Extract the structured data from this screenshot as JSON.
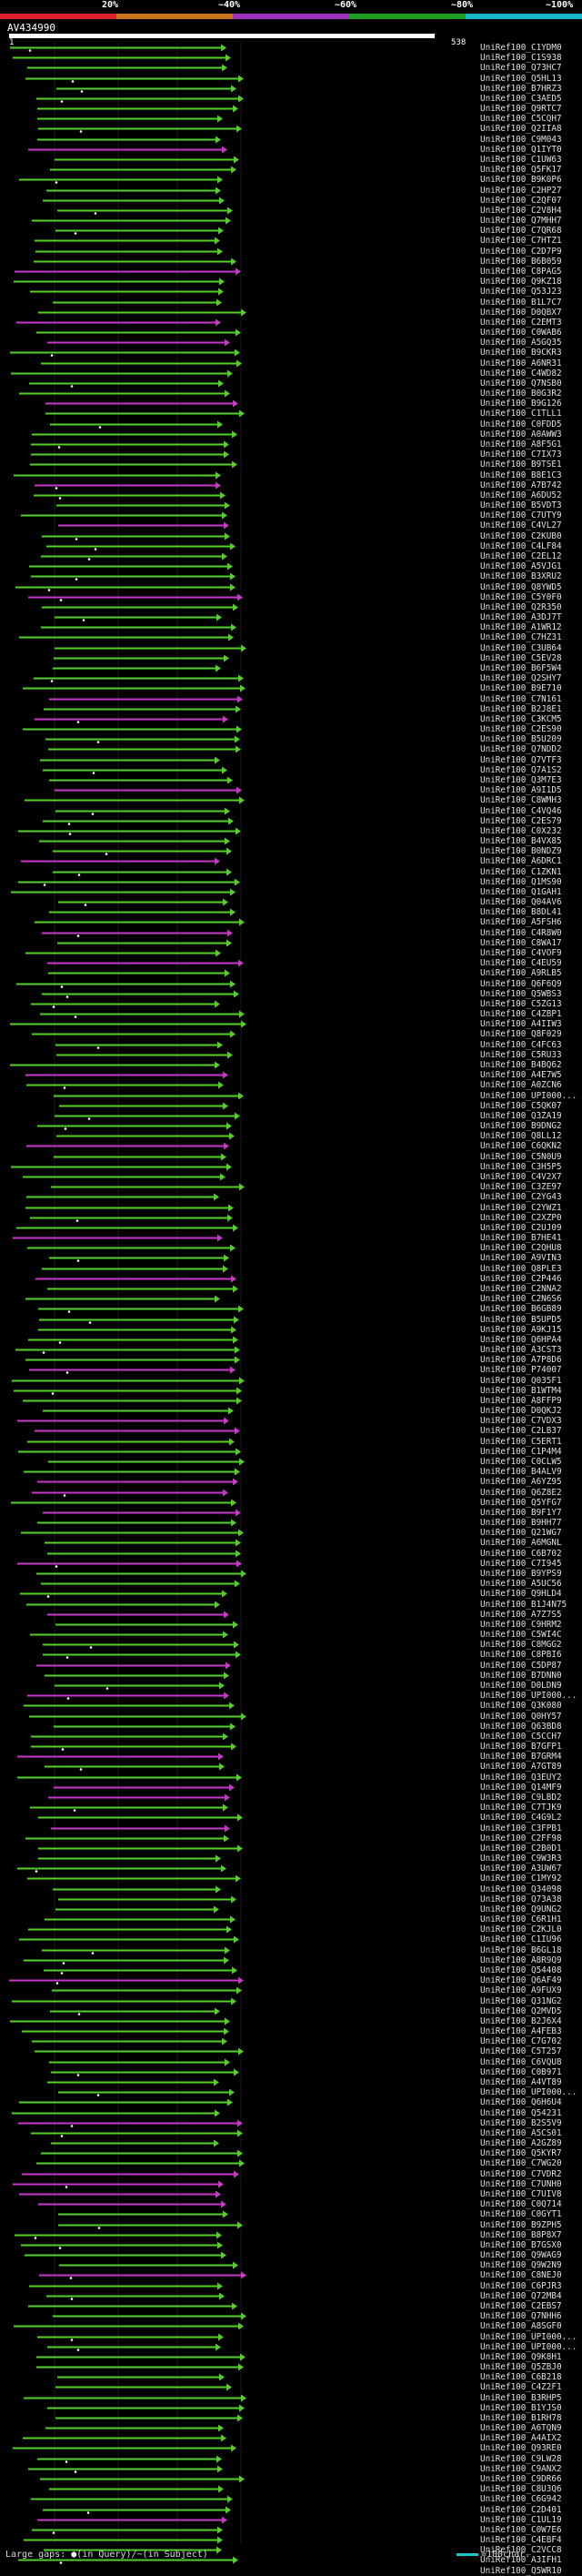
{
  "legend": {
    "labels": [
      "20%",
      "~40%",
      "~60%",
      "~80%",
      "~100%"
    ],
    "colors": [
      "#e0202a",
      "#c9741b",
      "#a030c0",
      "#1e9e1e",
      "#18b6c8"
    ]
  },
  "query": {
    "name": "AV434990",
    "start": "1",
    "end": "538"
  },
  "hits": [
    "UniRef100_C1YDM0",
    "UniRef100_C1S938",
    "UniRef100_Q73HC7",
    "UniRef100_Q5HL13",
    "UniRef100_B7HRZ3",
    "UniRef100_C3AED5",
    "UniRef100_Q9RTC7",
    "UniRef100_C5CQH7",
    "UniRef100_Q2IIA8",
    "UniRef100_C9M043",
    "UniRef100_Q1IYT0",
    "UniRef100_C1UW63",
    "UniRef100_Q5FK17",
    "UniRef100_B9K0P6",
    "UniRef100_C2HP27",
    "UniRef100_C2QF07",
    "UniRef100_C2V8H4",
    "UniRef100_Q7MHH7",
    "UniRef100_C7QR68",
    "UniRef100_C7HTZ1",
    "UniRef100_C2D7P9",
    "UniRef100_B6B059",
    "UniRef100_C8PAG5",
    "UniRef100_Q9KZ18",
    "UniRef100_Q53J23",
    "UniRef100_B1L7C7",
    "UniRef100_D0QBX7",
    "UniRef100_C2EMT3",
    "UniRef100_C0WAB6",
    "UniRef100_A5GQ35",
    "UniRef100_B9CKR3",
    "UniRef100_A6NR31",
    "UniRef100_C4WD82",
    "UniRef100_Q7NSB0",
    "UniRef100_B0G3R2",
    "UniRef100_B9G126",
    "UniRef100_C1TLL1",
    "UniRef100_C0FDD5",
    "UniRef100_A0AWW3",
    "UniRef100_A8F5G1",
    "UniRef100_C7IX73",
    "UniRef100_B9TSE1",
    "UniRef100_B8E1C3",
    "UniRef100_A7B742",
    "UniRef100_A6DU52",
    "UniRef100_B5VDT3",
    "UniRef100_C7UTY9",
    "UniRef100_C4VL27",
    "UniRef100_C2KUB0",
    "UniRef100_C4LF84",
    "UniRef100_C2EL12",
    "UniRef100_A5VJG1",
    "UniRef100_B3XRU2",
    "UniRef100_Q8YWD5",
    "UniRef100_C5Y0F0",
    "UniRef100_Q2R350",
    "UniRef100_A3DJ7T",
    "UniRef100_A1WR12",
    "UniRef100_C7HZ31",
    "UniRef100_C3UB64",
    "UniRef100_C5EV28",
    "UniRef100_B6F5W4",
    "UniRef100_Q2SHY7",
    "UniRef100_B9E710",
    "UniRef100_C7N161",
    "UniRef100_B2J8E1",
    "UniRef100_C3KCM5",
    "UniRef100_C2ES90",
    "UniRef100_B5U209",
    "UniRef100_Q7NDD2",
    "UniRef100_Q7VTF3",
    "UniRef100_Q7A1S2",
    "UniRef100_Q3M7E3",
    "UniRef100_A9I1D5",
    "UniRef100_C8WMH3",
    "UniRef100_C4VQ46",
    "UniRef100_C2ES79",
    "UniRef100_C0X232",
    "UniRef100_B4VX85",
    "UniRef100_B0NDZ9",
    "UniRef100_A6DRC1",
    "UniRef100_C1ZKN1",
    "UniRef100_Q1MS90",
    "UniRef100_Q1GAH1",
    "UniRef100_Q04AV6",
    "UniRef100_B8DL41",
    "UniRef100_A5FSH6",
    "UniRef100_C4R8W0",
    "UniRef100_C8WA17",
    "UniRef100_C4VOF9",
    "UniRef100_C4EU59",
    "UniRef100_A9RLB5",
    "UniRef100_Q6F6Q9",
    "UniRef100_Q5WBS3",
    "UniRef100_C5ZG13",
    "UniRef100_C4ZBP1",
    "UniRef100_A4IIW3",
    "UniRef100_Q8F029",
    "UniRef100_C4FC63",
    "UniRef100_C5RU33",
    "UniRef100_B4BQ62",
    "UniRef100_A4E7W5",
    "UniRef100_A0ZCN6",
    "UniRef100_UPI000...",
    "UniRef100_C5QK07",
    "UniRef100_Q3ZA19",
    "UniRef100_B9DNG2",
    "UniRef100_Q8LL12",
    "UniRef100_C6QKN2",
    "UniRef100_C5N0U9",
    "UniRef100_C3H5P5",
    "UniRef100_C4V2X7",
    "UniRef100_C3ZE97",
    "UniRef100_C2YG43",
    "UniRef100_C2YWZ1",
    "UniRef100_C2XZP0",
    "UniRef100_C2UJ09",
    "UniRef100_B7HE41",
    "UniRef100_C2QHU8",
    "UniRef100_A9VIN3",
    "UniRef100_Q8PLE3",
    "UniRef100_C2P446",
    "UniRef100_C2NNA2",
    "UniRef100_C2N6S6",
    "UniRef100_B6GB89",
    "UniRef100_B5UPD5",
    "UniRef100_A9KJ15",
    "UniRef100_Q6HPA4",
    "UniRef100_A3CST3",
    "UniRef100_A7P8D6",
    "UniRef100_P74007",
    "UniRef100_Q035F1",
    "UniRef100_B1WTM4",
    "UniRef100_A8FFP9",
    "UniRef100_D0QKJ2",
    "UniRef100_C7VDX3",
    "UniRef100_C2LB37",
    "UniRef100_C5ERT1",
    "UniRef100_C1P4M4",
    "UniRef100_C0CLW5",
    "UniRef100_B4ALV9",
    "UniRef100_A6YZ95",
    "UniRef100_Q6Z8E2",
    "UniRef100_Q5YFG7",
    "UniRef100_B9F1Y7",
    "UniRef100_B9HH77",
    "UniRef100_Q21WG7",
    "UniRef100_A6MGNL",
    "UniRef100_C6B702",
    "UniRef100_C7I945",
    "UniRef100_B9YPS9",
    "UniRef100_A5UC56",
    "UniRef100_Q9HLD4",
    "UniRef100_B1J4N75",
    "UniRef100_A7Z7S5",
    "UniRef100_C9HRM2",
    "UniRef100_C5WI4C",
    "UniRef100_C8MGG2",
    "UniRef100_C8PBI6",
    "UniRef100_C5DP87",
    "UniRef100_B7DNN0",
    "UniRef100_D0LDN9",
    "UniRef100_UPI000...",
    "UniRef100_Q3K080",
    "UniRef100_Q0HY57",
    "UniRef100_Q63BD8",
    "UniRef100_C5CCH7",
    "UniRef100_B7GFP1",
    "UniRef100_B7GRM4",
    "UniRef100_A7GT89",
    "UniRef100_Q3EUY2",
    "UniRef100_Q14MF9",
    "UniRef100_C9LBD2",
    "UniRef100_C7TJK9",
    "UniRef100_C4G9L2",
    "UniRef100_C3FPB1",
    "UniRef100_C2FF98",
    "UniRef100_C2B0D1",
    "UniRef100_C9W3R3",
    "UniRef100_A3UW67",
    "UniRef100_C1MY92",
    "UniRef100_Q34098",
    "UniRef100_Q73A38",
    "UniRef100_Q9UNG2",
    "UniRef100_C6R1H1",
    "UniRef100_C2KJL0",
    "UniRef100_C1IU96",
    "UniRef100_B6GL18",
    "UniRef100_A8R9Q9",
    "UniRef100_Q54408",
    "UniRef100_Q6AF49",
    "UniRef100_A9FUX9",
    "UniRef100_Q31NG2",
    "UniRef100_Q2MVD5",
    "UniRef100_B2J6X4",
    "UniRef100_A4FEB3",
    "UniRef100_C7G702",
    "UniRef100_C5T257",
    "UniRef100_C6VQU8",
    "UniRef100_C0B971",
    "UniRef100_A4VT89",
    "UniRef100_UPI000...",
    "UniRef100_Q6H6U4",
    "UniRef100_Q54231",
    "UniRef100_B2S5V9",
    "UniRef100_A5CS01",
    "UniRef100_A2GZ89",
    "UniRef100_Q5KYR7",
    "UniRef100_C7WG20",
    "UniRef100_C7VDR2",
    "UniRef100_C7UNH0",
    "UniRef100_C7UIV8",
    "UniRef100_C0Q714",
    "UniRef100_C0GYT1",
    "UniRef100_B9ZPH5",
    "UniRef100_B8P8X7",
    "UniRef100_B7GSX0",
    "UniRef100_Q9WAG9",
    "UniRef100_Q9W2N9",
    "UniRef100_C8NEJ0",
    "UniRef100_C6PJR3",
    "UniRef100_Q72MB4",
    "UniRef100_C2EBS7",
    "UniRef100_Q7NHH6",
    "UniRef100_A8SGF0",
    "UniRef100_UPI000...",
    "UniRef100_UPI000...",
    "UniRef100_Q9K8H1",
    "UniRef100_Q5ZBJ0",
    "UniRef100_C6B218",
    "UniRef100_C4Z2F1",
    "UniRef100_B3RHP5",
    "UniRef100_B1YJS0",
    "UniRef100_B1RH78",
    "UniRef100_A6TQN9",
    "UniRef100_A4AIX2",
    "UniRef100_Q93RE0",
    "UniRef100_C9LW28",
    "UniRef100_C9ANX2",
    "UniRef100_C9DR66",
    "UniRef100_C8U3Q6",
    "UniRef100_C6G942",
    "UniRef100_C2D401",
    "UniRef100_C1UL19",
    "UniRef100_C0W7E6",
    "UniRef100_C4EBF4",
    "UniRef100_C2VCC8",
    "UniRef100_A3IFH1",
    "UniRef100_Q5WR10"
  ],
  "footer": {
    "gaps_label": "Large gaps: ",
    "in_query": "(in Query)",
    "separator": "/",
    "in_subject": "~(in Subject)",
    "scale_label": "=100char."
  }
}
